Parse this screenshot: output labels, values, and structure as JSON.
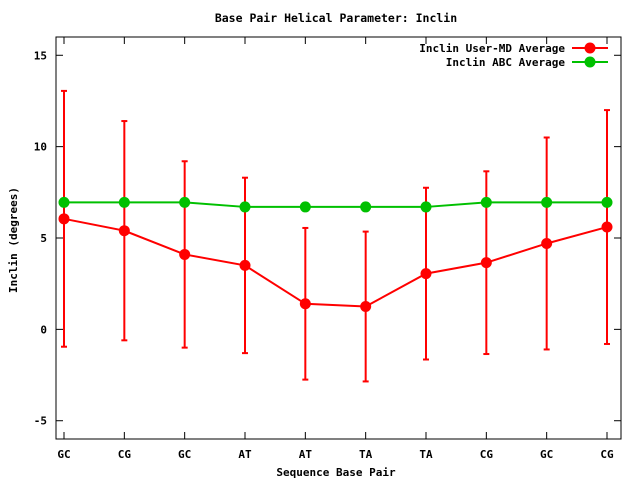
{
  "chart_data": {
    "type": "line",
    "title": "Base Pair Helical Parameter: Inclin",
    "xlabel": "Sequence Base Pair",
    "ylabel": "Inclin (degrees)",
    "categories": [
      "GC",
      "CG",
      "GC",
      "AT",
      "AT",
      "TA",
      "TA",
      "CG",
      "GC",
      "CG"
    ],
    "ylim": [
      -6,
      16
    ],
    "yticks": [
      -5,
      0,
      5,
      10,
      15
    ],
    "grid": false,
    "legend_position": "top-right",
    "series": [
      {
        "name": "Inclin User-MD Average",
        "color": "#ff0000",
        "values": [
          6.05,
          5.4,
          4.1,
          3.5,
          1.4,
          1.25,
          3.05,
          3.65,
          4.7,
          5.6
        ],
        "error": [
          7.0,
          6.0,
          5.1,
          4.8,
          4.15,
          4.1,
          4.7,
          5.0,
          5.8,
          6.4
        ]
      },
      {
        "name": "Inclin ABC Average",
        "color": "#00c000",
        "values": [
          6.95,
          6.95,
          6.95,
          6.7,
          6.7,
          6.7,
          6.7,
          6.95,
          6.95,
          6.95
        ]
      }
    ]
  }
}
